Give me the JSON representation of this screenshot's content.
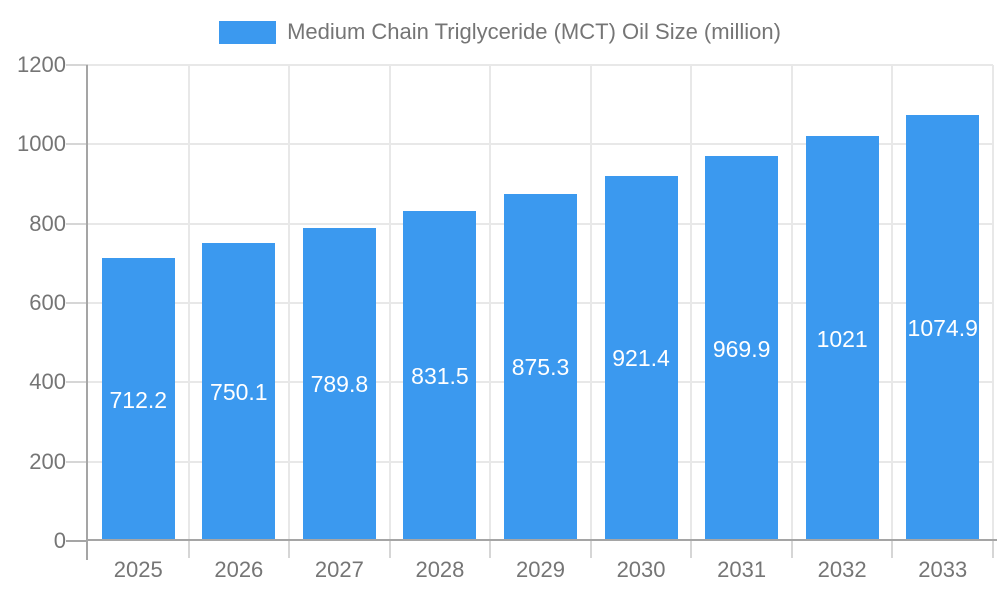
{
  "legend": {
    "label": "Medium Chain Triglyceride (MCT) Oil Size (million)"
  },
  "chart_data": {
    "type": "bar",
    "title": "Medium Chain Triglyceride (MCT) Oil Size (million)",
    "categories": [
      "2025",
      "2026",
      "2027",
      "2028",
      "2029",
      "2030",
      "2031",
      "2032",
      "2033"
    ],
    "values": [
      712.2,
      750.1,
      789.8,
      831.5,
      875.3,
      921.4,
      969.9,
      1021,
      1074.9
    ],
    "value_labels": [
      "712.2",
      "750.1",
      "789.8",
      "831.5",
      "875.3",
      "921.4",
      "969.9",
      "1021",
      "1074.9"
    ],
    "xlabel": "",
    "ylabel": "",
    "ylim": [
      0,
      1200
    ],
    "y_ticks": [
      0,
      200,
      400,
      600,
      800,
      1000,
      1200
    ],
    "grid": true,
    "legend_position": "top",
    "colors": {
      "bar": "#3B99EF",
      "value_label": "#FFFFFF",
      "axis_line": "#A5A5A5",
      "grid_line": "#E8E8E8",
      "tick_mark": "#D6D6D6",
      "tick_text": "#757575",
      "legend_text": "#757575",
      "background": "#FFFFFF"
    }
  }
}
